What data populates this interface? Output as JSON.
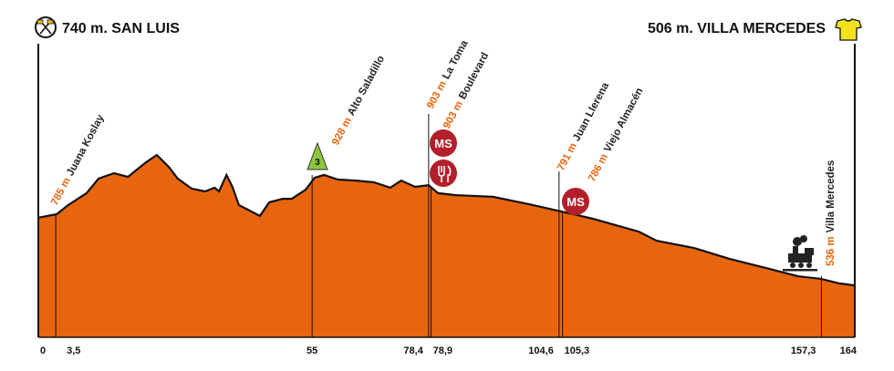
{
  "chart_data": {
    "type": "area",
    "start_label": "740 m. SAN LUIS",
    "finish_label": "506 m. VILLA MERCEDES",
    "color": "#e8650f",
    "x": [
      0,
      3.7,
      6.0,
      9.7,
      12.1,
      15.2,
      18.0,
      21.6,
      23.8,
      26.2,
      28.0,
      30.8,
      33.5,
      35.4,
      36.3,
      37.8,
      39.0,
      40.3,
      44.5,
      46.4,
      49.1,
      50.9,
      53.7,
      55.5,
      57.4,
      60.1,
      63.8,
      67.4,
      70.7,
      72.9,
      75.7,
      78.4,
      80.3,
      83.9,
      91.3,
      98.6,
      105.0,
      111.4,
      120.6,
      124.2,
      131.6,
      138.9,
      146.2,
      152.6,
      157.2,
      160.9,
      164.0
    ],
    "values": [
      740,
      752,
      784,
      826,
      877,
      896,
      883,
      934,
      960,
      918,
      877,
      842,
      832,
      845,
      832,
      890,
      848,
      784,
      746,
      794,
      806,
      806,
      838,
      880,
      890,
      874,
      870,
      864,
      845,
      870,
      848,
      854,
      826,
      819,
      813,
      787,
      762,
      736,
      691,
      659,
      634,
      595,
      563,
      534,
      525,
      509,
      502
    ],
    "xlim": [
      0,
      164
    ],
    "ylim": [
      320,
      1376
    ],
    "xticks": [
      0,
      {
        "value": 3.5,
        "label": "3,5"
      },
      55,
      {
        "value": 78.4,
        "label": "78,4"
      },
      {
        "value": 78.9,
        "label": "78,9"
      },
      {
        "value": 104.6,
        "label": "104,6"
      },
      {
        "value": 105.3,
        "label": "105,3"
      },
      {
        "value": 157.3,
        "label": "157,3"
      },
      164
    ],
    "waypoints": [
      {
        "km": 3.5,
        "altitude": 785,
        "altitude_label": "785 m",
        "name": "Juana Koslay"
      },
      {
        "km": 55,
        "altitude": 928,
        "altitude_label": "928 m",
        "name": "Alto Saladillo"
      },
      {
        "km": 78.4,
        "altitude": 903,
        "altitude_label": "903 m",
        "name": "La Toma"
      },
      {
        "km": 78.9,
        "altitude": 903,
        "altitude_label": "903 m",
        "name": "Boulevard"
      },
      {
        "km": 104.6,
        "altitude": 791,
        "altitude_label": "791 m",
        "name": "Juan Llerena"
      },
      {
        "km": 105.3,
        "altitude": 786,
        "altitude_label": "786 m",
        "name": "Viejo Almacén"
      },
      {
        "km": 157.3,
        "altitude": 536,
        "altitude_label": "536 m",
        "name": "Villa Mercedes"
      }
    ],
    "kom_category": 3,
    "sprint_label": "MS"
  }
}
